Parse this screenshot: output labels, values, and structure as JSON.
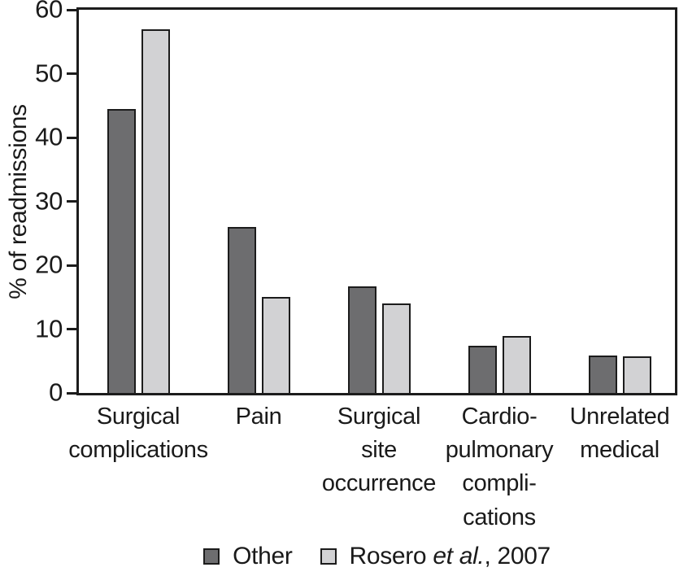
{
  "chart_data": {
    "type": "bar",
    "title": "",
    "xlabel": "",
    "ylabel": "% of readmissions",
    "ylim": [
      0,
      60
    ],
    "yticks": [
      0,
      10,
      20,
      30,
      40,
      50,
      60
    ],
    "grid": false,
    "legend_position": "bottom",
    "categories": [
      "Surgical\ncomplications",
      "Pain",
      "Surgical\nsite\noccurrence",
      "Cardio-\npulmonary\ncompli-\ncations",
      "Unrelated\nmedical"
    ],
    "series": [
      {
        "name": "Other",
        "label_parts": {
          "prefix": "Other",
          "italic": "",
          "suffix": ""
        },
        "color": "#6d6d6f",
        "values": [
          44.5,
          26,
          16.7,
          7.4,
          5.9
        ]
      },
      {
        "name": "Rosero et al., 2007",
        "label_parts": {
          "prefix": "Rosero ",
          "italic": "et al.",
          "suffix": ", 2007"
        },
        "color": "#d2d2d4",
        "values": [
          57,
          15,
          14,
          8.9,
          5.7
        ]
      }
    ],
    "colors": {
      "axis": "#1c1c1c",
      "bar_border": "#1c1c1c",
      "text": "#1a1a1a",
      "background": "#ffffff"
    }
  }
}
